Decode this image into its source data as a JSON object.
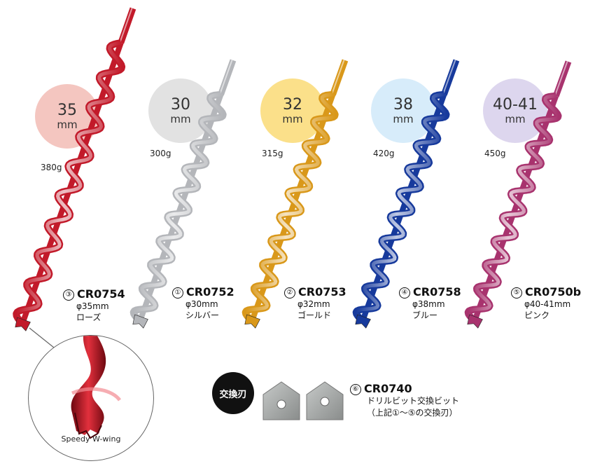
{
  "products": [
    {
      "num": "③",
      "size": "35",
      "unit": "mm",
      "weight": "380g",
      "code": "CR0754",
      "diameter": "φ35mm",
      "color_name": "ローズ",
      "bubble_color": "#f4c6c0",
      "drill_color": "#c21a2a"
    },
    {
      "num": "①",
      "size": "30",
      "unit": "mm",
      "weight": "300g",
      "code": "CR0752",
      "diameter": "φ30mm",
      "color_name": "シルバー",
      "bubble_color": "#e2e2e2",
      "drill_color": "#b4b6ba"
    },
    {
      "num": "②",
      "size": "32",
      "unit": "mm",
      "weight": "315g",
      "code": "CR0753",
      "diameter": "φ32mm",
      "color_name": "ゴールド",
      "bubble_color": "#fbe08a",
      "drill_color": "#d9981a"
    },
    {
      "num": "④",
      "size": "38",
      "unit": "mm",
      "weight": "420g",
      "code": "CR0758",
      "diameter": "φ38mm",
      "color_name": "ブルー",
      "bubble_color": "#d7ecfa",
      "drill_color": "#173a9c"
    },
    {
      "num": "⑤",
      "size": "40-41",
      "unit": "mm",
      "weight": "450g",
      "code": "CR0750b",
      "diameter": "φ40-41mm",
      "color_name": "ピンク",
      "bubble_color": "#ddd6ee",
      "drill_color": "#a8336e"
    }
  ],
  "zoom_label": "Speedy W-wing",
  "blade": {
    "badge": "交換刃",
    "num": "⑥",
    "code": "CR0740",
    "line1": "ドリルビット交換ビット",
    "line2": "（上記①～⑤の交換刃）",
    "color": "#a6a9a8"
  }
}
